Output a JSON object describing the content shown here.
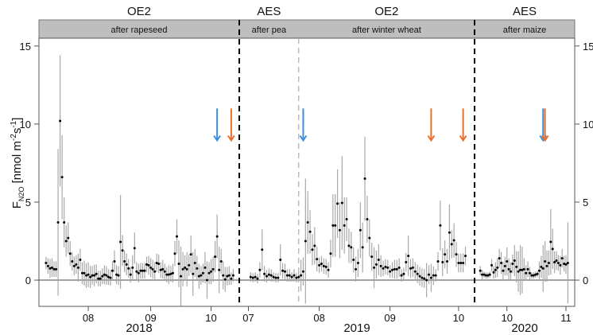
{
  "chart_data": {
    "type": "scatter",
    "ylabel": {
      "main": "F",
      "sub": "N2O",
      "unit_prefix": " [nmol m",
      "exp1": "-2",
      "mid": "s",
      "exp2": "-1",
      "suffix": "]"
    },
    "ylim": [
      -1.68,
      15.5
    ],
    "yticks": [
      0,
      5,
      10,
      15
    ],
    "zero_line": true,
    "colors": {
      "blue_arrow": "#3d8fdc",
      "orange_arrow": "#e8702a",
      "strip": "#bebebe",
      "errorbar": "#a8a8a8",
      "point": "#000000"
    },
    "panels": [
      {
        "year": "2018",
        "system": "OE2",
        "strip_label": "after rapeseed",
        "xlim_doy": [
          188.5,
          288
        ],
        "xticks": [
          {
            "doy": 213,
            "label": "08"
          },
          {
            "doy": 244,
            "label": "09"
          },
          {
            "doy": 274,
            "label": "10"
          }
        ],
        "start_doy": 192,
        "values": [
          1.1,
          0.9,
          0.75,
          0.8,
          0.7,
          0.7,
          3.7,
          10.2,
          6.6,
          3.7,
          2.5,
          2.7,
          1.7,
          1.2,
          0.9,
          1.0,
          0.8,
          1.3,
          0.45,
          0.45,
          0.3,
          0.35,
          0.2,
          0.3,
          0.3,
          0.4,
          0.1,
          0.1,
          0.25,
          0.35,
          0.3,
          0.2,
          0.15,
          0.6,
          1.2,
          0.35,
          0.3,
          2.45,
          1.9,
          1.2,
          1.0,
          0.75,
          0.35,
          0.8,
          2.05,
          0.55,
          0.45,
          0.6,
          0.6,
          0.6,
          1.0,
          0.95,
          0.8,
          0.7,
          0.55,
          1.1,
          1.05,
          0.65,
          0.7,
          0.55,
          0.35,
          0.35,
          0.4,
          0.45,
          1.7,
          2.8,
          1.05,
          0.25,
          0.7,
          0.8,
          0.7,
          0.95,
          1.65,
          0.4,
          1.1,
          0.75,
          0.25,
          0.3,
          0.45,
          0.8,
          0.0,
          0.45,
          0.55,
          0.7,
          1.5,
          2.8,
          0.65,
          1.2,
          0.3,
          0.05,
          0.25,
          0.3,
          0.1,
          0.3
        ],
        "errors": [
          0.4,
          0.5,
          0.6,
          0.6,
          0.5,
          0.5,
          4.7,
          4.2,
          2.7,
          1.6,
          1.0,
          1.0,
          0.8,
          0.6,
          0.6,
          0.6,
          0.9,
          0.7,
          0.7,
          0.8,
          0.8,
          0.8,
          0.7,
          0.6,
          0.7,
          0.6,
          0.5,
          0.5,
          0.5,
          0.6,
          0.6,
          0.5,
          0.5,
          0.6,
          0.7,
          0.6,
          0.6,
          3.0,
          1.0,
          0.7,
          0.7,
          0.6,
          0.5,
          0.8,
          1.0,
          0.6,
          0.6,
          0.5,
          0.5,
          0.5,
          0.5,
          0.6,
          0.6,
          0.6,
          0.6,
          0.6,
          0.6,
          0.5,
          0.6,
          0.5,
          0.5,
          0.6,
          0.5,
          0.6,
          0.8,
          1.1,
          1.5,
          1.9,
          1.1,
          0.8,
          1.1,
          0.7,
          1.2,
          1.4,
          0.9,
          0.8,
          0.8,
          0.6,
          0.6,
          1.0,
          1.2,
          0.7,
          0.8,
          0.8,
          1.0,
          1.4,
          1.5,
          0.8,
          0.9,
          0.8,
          0.6,
          0.6,
          0.4,
          0.4
        ],
        "arrows": [
          {
            "doy": 277,
            "color": "blue"
          },
          {
            "doy": 284,
            "color": "orange"
          }
        ]
      },
      {
        "year": "2019",
        "system_segments": [
          {
            "system": "AES",
            "strip_label": "after pea"
          },
          {
            "system": "OE2",
            "strip_label": "after winter wheat"
          }
        ],
        "crop_change_doy": 204,
        "xlim_doy": [
          178,
          281
        ],
        "xticks": [
          {
            "doy": 182,
            "label": "07"
          },
          {
            "doy": 213,
            "label": "08"
          },
          {
            "doy": 244,
            "label": "09"
          },
          {
            "doy": 274,
            "label": "10"
          }
        ],
        "start_doy": 183,
        "values": [
          0.2,
          0.15,
          0.2,
          0.1,
          0.65,
          1.95,
          0.4,
          0.25,
          0.35,
          0.3,
          0.2,
          0.15,
          0.15,
          1.3,
          0.6,
          0.55,
          0.3,
          0.3,
          0.2,
          0.3,
          0.15,
          0.2,
          0.3,
          0.55,
          2.5,
          3.7,
          3.1,
          1.95,
          2.2,
          1.35,
          0.95,
          1.05,
          0.9,
          0.85,
          0.65,
          1.7,
          3.5,
          3.5,
          4.9,
          3.2,
          4.95,
          3.5,
          3.9,
          2.2,
          2.1,
          1.3,
          0.7,
          1.1,
          3.2,
          2.1,
          6.5,
          3.9,
          2.7,
          1.5,
          0.8,
          1.0,
          1.3,
          0.9,
          0.75,
          0.85,
          0.8,
          0.55,
          0.65,
          0.7,
          0.7,
          0.8,
          0.3,
          0.4,
          1.15,
          1.55,
          0.75,
          0.8,
          0.55,
          0.4,
          0.25,
          0.15,
          0.1,
          0.0,
          0.35,
          0.15,
          0.3,
          0.3,
          1.2,
          3.5,
          1.15,
          1.65,
          1.2,
          3.05,
          2.3,
          2.55,
          1.65,
          1.1,
          1.1,
          1.1,
          1.55
        ],
        "errors": [
          0.3,
          0.3,
          0.3,
          0.3,
          0.5,
          1.3,
          0.5,
          0.4,
          0.4,
          0.4,
          0.3,
          0.3,
          0.3,
          1.0,
          0.5,
          0.5,
          0.4,
          0.4,
          0.3,
          0.4,
          0.3,
          0.3,
          1.0,
          0.9,
          4.0,
          2.0,
          1.4,
          1.0,
          1.2,
          0.8,
          0.5,
          0.5,
          0.5,
          0.5,
          0.5,
          0.9,
          2.0,
          2.0,
          2.2,
          1.8,
          3.0,
          1.8,
          1.4,
          1.1,
          1.0,
          0.8,
          0.8,
          0.9,
          1.8,
          1.6,
          2.7,
          1.5,
          1.2,
          0.9,
          1.3,
          0.9,
          1.0,
          0.7,
          0.5,
          0.5,
          0.5,
          0.4,
          0.5,
          0.6,
          0.6,
          0.6,
          0.4,
          0.4,
          0.6,
          1.3,
          0.6,
          0.6,
          0.6,
          0.6,
          0.6,
          0.6,
          0.6,
          1.1,
          0.6,
          0.9,
          0.6,
          0.4,
          0.6,
          1.6,
          0.9,
          0.9,
          0.8,
          1.8,
          0.9,
          1.1,
          0.8,
          0.6,
          0.6,
          0.6,
          0.6
        ],
        "arrows": [
          {
            "doy": 206,
            "color": "blue"
          },
          {
            "doy": 262,
            "color": "orange"
          },
          {
            "doy": 276,
            "color": "orange"
          }
        ]
      },
      {
        "year": "2020",
        "system": "AES",
        "strip_label": "after maize",
        "xlim_doy": [
          257,
          309.6
        ],
        "xticks": [
          {
            "doy": 274,
            "label": "10"
          },
          {
            "doy": 305,
            "label": "11"
          }
        ],
        "start_doy": 260,
        "values": [
          0.6,
          0.35,
          0.35,
          0.3,
          0.3,
          0.35,
          0.95,
          0.5,
          0.65,
          0.8,
          1.4,
          1.1,
          0.6,
          0.9,
          1.2,
          0.7,
          0.55,
          1.05,
          1.25,
          0.85,
          0.55,
          0.65,
          0.65,
          0.7,
          0.45,
          0.7,
          0.45,
          0.3,
          0.3,
          0.35,
          0.4,
          0.6,
          0.85,
          0.75,
          1.2,
          0.9,
          1.1,
          2.45,
          2.0,
          1.15,
          1.25,
          1.1,
          0.95,
          1.4,
          1.05,
          1.0,
          1.1
        ],
        "errors": [
          0.3,
          0.3,
          0.2,
          0.2,
          0.2,
          0.2,
          0.4,
          0.4,
          0.5,
          0.6,
          0.6,
          0.7,
          0.6,
          0.6,
          0.9,
          0.7,
          0.6,
          0.6,
          1.0,
          1.0,
          1.3,
          1.6,
          1.5,
          0.7,
          0.5,
          0.5,
          0.4,
          0.2,
          0.2,
          0.2,
          0.2,
          0.6,
          0.7,
          1.5,
          1.3,
          1.0,
          0.8,
          2.1,
          1.3,
          0.7,
          0.6,
          0.5,
          0.6,
          0.6,
          0.5,
          0.6,
          2.6
        ],
        "arrows": [
          {
            "doy": 293,
            "color": "blue"
          },
          {
            "doy": 294,
            "color": "orange"
          }
        ]
      }
    ],
    "arrow_range": [
      11.0,
      9.0
    ]
  }
}
